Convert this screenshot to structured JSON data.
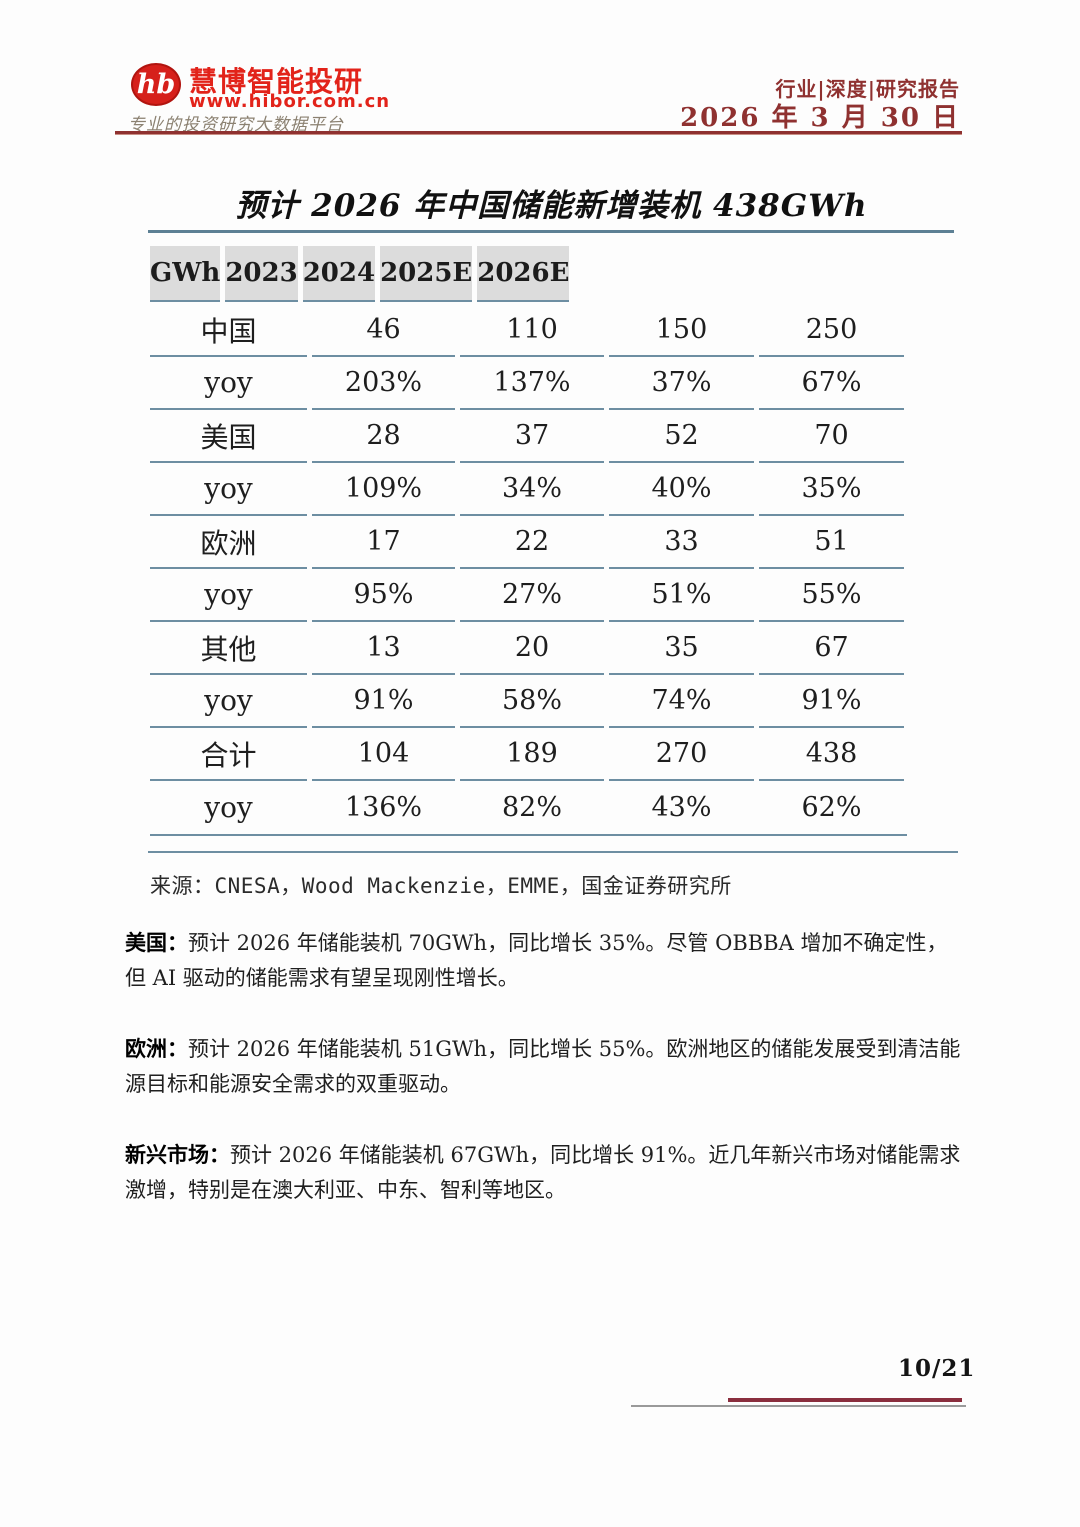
{
  "header": {
    "logo_monogram": "hb",
    "brand": "慧博智能投研",
    "url": "www.hibor.com.cn",
    "tagline": "专业的投资研究大数据平台",
    "report_type": "行业|深度|研究报告",
    "date": "2026 年 3 月 30 日"
  },
  "table": {
    "title": "预计 2026 年中国储能新增装机 438GWh",
    "columns": [
      "GWh",
      "2023",
      "2024",
      "2025E",
      "2026E"
    ],
    "rows": [
      {
        "label": "中国",
        "values": [
          "46",
          "110",
          "150",
          "250"
        ]
      },
      {
        "label": "yoy",
        "values": [
          "203%",
          "137%",
          "37%",
          "67%"
        ]
      },
      {
        "label": "美国",
        "values": [
          "28",
          "37",
          "52",
          "70"
        ]
      },
      {
        "label": "yoy",
        "values": [
          "109%",
          "34%",
          "40%",
          "35%"
        ]
      },
      {
        "label": "欧洲",
        "values": [
          "17",
          "22",
          "33",
          "51"
        ]
      },
      {
        "label": "yoy",
        "values": [
          "95%",
          "27%",
          "51%",
          "55%"
        ]
      },
      {
        "label": "其他",
        "values": [
          "13",
          "20",
          "35",
          "67"
        ]
      },
      {
        "label": "yoy",
        "values": [
          "91%",
          "58%",
          "74%",
          "91%"
        ]
      },
      {
        "label": "合计",
        "values": [
          "104",
          "189",
          "270",
          "438"
        ]
      },
      {
        "label": "yoy",
        "values": [
          "136%",
          "82%",
          "43%",
          "62%"
        ]
      }
    ],
    "source": "来源：CNESA，Wood Mackenzie，EMME，国金证券研究所"
  },
  "paragraphs": [
    {
      "label": "美国：",
      "text": "预计 2026 年储能装机 70GWh，同比增长 35%。尽管 OBBBA 增加不确定性，但 AI 驱动的储能需求有望呈现刚性增长。"
    },
    {
      "label": "欧洲：",
      "text": "预计 2026 年储能装机 51GWh，同比增长 55%。欧洲地区的储能发展受到清洁能源目标和能源安全需求的双重驱动。"
    },
    {
      "label": "新兴市场：",
      "text": "预计 2026 年储能装机 67GWh，同比增长 91%。近几年新兴市场对储能需求激增，特别是在澳大利亚、中东、智利等地区。"
    }
  ],
  "footer": {
    "page_number": "10/21"
  },
  "colors": {
    "brand_red": "#e2231a",
    "header_maroon": "#8f3130",
    "table_line_blue": "#6d8ea2",
    "table_header_bg": "#dcdcdc",
    "footer_line_maroon": "#8a2e3e"
  }
}
